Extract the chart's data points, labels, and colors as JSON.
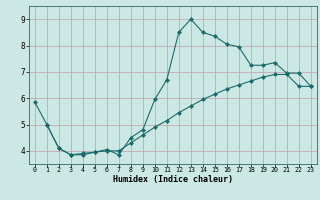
{
  "xlabel": "Humidex (Indice chaleur)",
  "bg_color": "#cce8e4",
  "grid_color": "#c4a8b4",
  "line_color": "#1a6b6b",
  "line1_x": [
    0,
    1,
    2,
    3,
    4,
    5,
    6,
    7,
    8,
    9,
    10,
    11,
    12,
    13,
    14,
    15,
    16,
    17,
    18,
    19,
    20,
    21,
    22,
    23
  ],
  "line1_y": [
    5.85,
    5.0,
    4.1,
    3.85,
    3.85,
    3.95,
    4.05,
    3.85,
    4.5,
    4.8,
    5.95,
    6.7,
    8.5,
    9.0,
    8.5,
    8.35,
    8.05,
    7.95,
    7.25,
    7.25,
    7.35,
    6.95,
    6.95,
    6.45
  ],
  "line2_x": [
    1,
    2,
    3,
    4,
    5,
    6,
    7,
    8,
    9,
    10,
    11,
    12,
    13,
    14,
    15,
    16,
    17,
    18,
    19,
    20,
    21,
    22,
    23
  ],
  "line2_y": [
    5.0,
    4.1,
    3.85,
    3.9,
    3.95,
    4.0,
    4.0,
    4.3,
    4.6,
    4.9,
    5.15,
    5.45,
    5.7,
    5.95,
    6.15,
    6.35,
    6.5,
    6.65,
    6.8,
    6.9,
    6.9,
    6.45,
    6.45
  ],
  "xlim": [
    -0.5,
    23.5
  ],
  "ylim": [
    3.5,
    9.5
  ],
  "xticks": [
    0,
    1,
    2,
    3,
    4,
    5,
    6,
    7,
    8,
    9,
    10,
    11,
    12,
    13,
    14,
    15,
    16,
    17,
    18,
    19,
    20,
    21,
    22,
    23
  ],
  "yticks": [
    4,
    5,
    6,
    7,
    8,
    9
  ],
  "xtick_labels": [
    "0",
    "1",
    "2",
    "3",
    "4",
    "5",
    "6",
    "7",
    "8",
    "9",
    "10",
    "11",
    "12",
    "13",
    "14",
    "15",
    "16",
    "17",
    "18",
    "19",
    "20",
    "21",
    "22",
    "23"
  ],
  "ytick_labels": [
    "4",
    "5",
    "6",
    "7",
    "8",
    "9"
  ]
}
